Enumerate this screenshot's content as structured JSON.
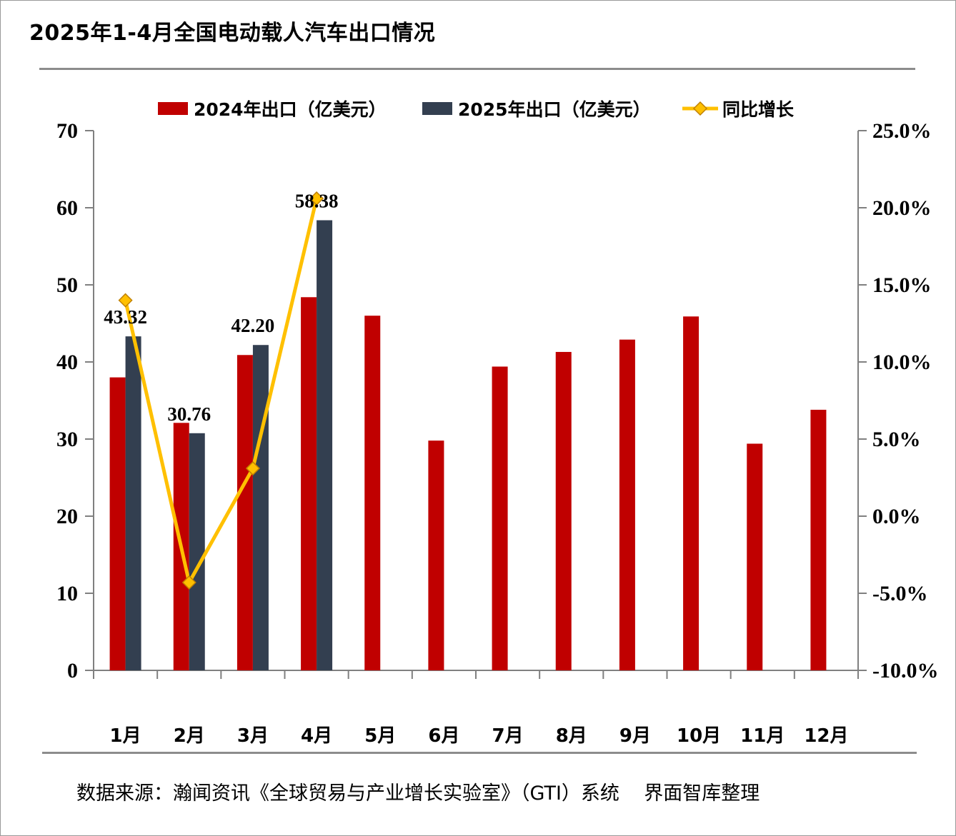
{
  "title": "2025年1-4月全国电动载人汽车出口情况",
  "source": "数据来源：瀚闻资讯《全球贸易与产业增长实验室》（GTI）系统    界面智库整理",
  "colors": {
    "series2024": "#c00000",
    "series2025": "#333f50",
    "growth_line": "#ffc000",
    "growth_marker_fill": "#ffc000",
    "growth_marker_stroke": "#c08000",
    "axis": "#808080"
  },
  "chart_data": {
    "type": "bar",
    "title": "2025年1-4月全国电动载人汽车出口情况",
    "categories": [
      "1月",
      "2月",
      "3月",
      "4月",
      "5月",
      "6月",
      "7月",
      "8月",
      "9月",
      "10月",
      "11月",
      "12月"
    ],
    "series": [
      {
        "name": "2024年出口（亿美元）",
        "values": [
          38.0,
          32.1,
          40.9,
          48.4,
          46.0,
          29.8,
          39.4,
          41.3,
          42.9,
          45.9,
          29.4,
          33.8
        ]
      },
      {
        "name": "2025年出口（亿美元）",
        "values": [
          43.32,
          30.76,
          42.2,
          58.38,
          null,
          null,
          null,
          null,
          null,
          null,
          null,
          null
        ]
      },
      {
        "name": "同比增长",
        "type": "line",
        "axis": "right",
        "values": [
          14.0,
          -4.3,
          3.1,
          20.6,
          null,
          null,
          null,
          null,
          null,
          null,
          null,
          null
        ]
      }
    ],
    "data_labels": [
      "43.32",
      "30.76",
      "42.20",
      "58.38"
    ],
    "y_left": {
      "min": 0,
      "max": 70,
      "step": 10,
      "ticks": [
        "0",
        "10",
        "20",
        "30",
        "40",
        "50",
        "60",
        "70"
      ]
    },
    "y_right": {
      "min": -10,
      "max": 25,
      "step": 5,
      "ticks": [
        "-10.0%",
        "-5.0%",
        "0.0%",
        "5.0%",
        "10.0%",
        "15.0%",
        "20.0%",
        "25.0%"
      ]
    },
    "legend_position": "top-center",
    "grid": false
  }
}
